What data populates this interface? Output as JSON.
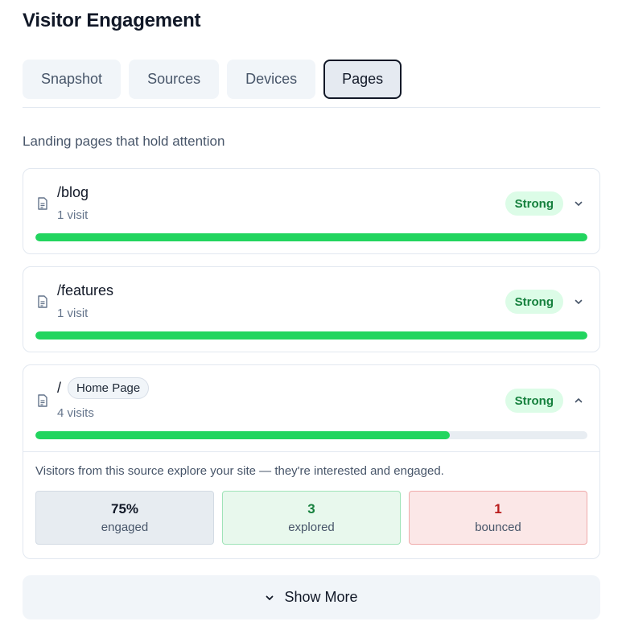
{
  "header": {
    "title": "Visitor Engagement"
  },
  "tabs": [
    {
      "label": "Snapshot",
      "active": false
    },
    {
      "label": "Sources",
      "active": false
    },
    {
      "label": "Devices",
      "active": false
    },
    {
      "label": "Pages",
      "active": true
    }
  ],
  "section": {
    "subtitle": "Landing pages that hold attention"
  },
  "pages": [
    {
      "path": "/blog",
      "visits": "1 visit",
      "badge": "Strong",
      "engagement_fraction": 1.0,
      "expanded": false,
      "chevron_icon": "chevron-down-icon"
    },
    {
      "path": "/features",
      "visits": "1 visit",
      "badge": "Strong",
      "engagement_fraction": 1.0,
      "expanded": false,
      "chevron_icon": "chevron-down-icon"
    },
    {
      "path": "/",
      "tag": "Home Page",
      "visits": "4 visits",
      "badge": "Strong",
      "engagement_fraction": 0.75,
      "expanded": true,
      "chevron_icon": "chevron-up-icon",
      "detail": {
        "text": "Visitors from this source explore your site — they're interested and engaged.",
        "stats": [
          {
            "value": "75%",
            "label": "engaged"
          },
          {
            "value": "3",
            "label": "explored"
          },
          {
            "value": "1",
            "label": "bounced"
          }
        ]
      }
    }
  ],
  "footer": {
    "show_more_label": "Show More",
    "icon": "chevron-down-icon"
  },
  "colors": {
    "accent_green": "#22d55f",
    "badge_bg": "#dcfce7",
    "badge_text": "#15803d",
    "bounced_text": "#b91c1c"
  },
  "icons": {
    "page": "document-icon"
  }
}
